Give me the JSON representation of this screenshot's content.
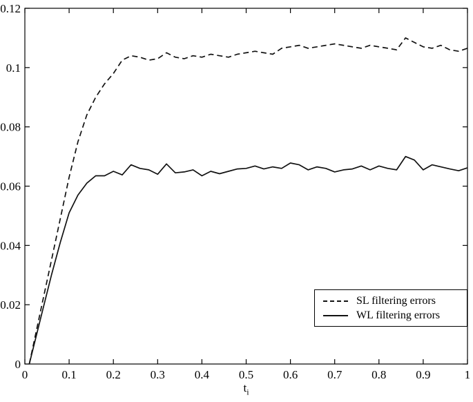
{
  "chart_data": {
    "type": "line",
    "title": "",
    "xlabel": "t_i",
    "xlabel_base": "t",
    "xlabel_sub": "i",
    "ylabel": "",
    "xlim": [
      0,
      1
    ],
    "ylim": [
      0,
      0.12
    ],
    "grid": false,
    "legend_position": "lower right",
    "xticks": [
      0,
      0.1,
      0.2,
      0.3,
      0.4,
      0.5,
      0.6,
      0.7,
      0.8,
      0.9,
      1
    ],
    "xtick_labels": [
      "0",
      "0.1",
      "0.2",
      "0.3",
      "0.4",
      "0.5",
      "0.6",
      "0.7",
      "0.8",
      "0.9",
      "1"
    ],
    "yticks": [
      0,
      0.02,
      0.04,
      0.06,
      0.08,
      0.1,
      0.12
    ],
    "ytick_labels": [
      "0",
      "0.02",
      "0.04",
      "0.06",
      "0.08",
      "0.1",
      "0.12"
    ],
    "x": [
      0.01,
      0.02,
      0.04,
      0.06,
      0.08,
      0.1,
      0.12,
      0.14,
      0.16,
      0.18,
      0.2,
      0.22,
      0.24,
      0.26,
      0.28,
      0.3,
      0.32,
      0.34,
      0.36,
      0.38,
      0.4,
      0.42,
      0.44,
      0.46,
      0.48,
      0.5,
      0.52,
      0.54,
      0.56,
      0.58,
      0.6,
      0.62,
      0.64,
      0.66,
      0.68,
      0.7,
      0.72,
      0.74,
      0.76,
      0.78,
      0.8,
      0.82,
      0.84,
      0.86,
      0.88,
      0.9,
      0.92,
      0.94,
      0.96,
      0.98,
      1.0
    ],
    "series": [
      {
        "name": "SL filtering errors",
        "style": "dashed",
        "values": [
          0,
          0.007,
          0.021,
          0.035,
          0.049,
          0.063,
          0.075,
          0.084,
          0.09,
          0.0945,
          0.098,
          0.1025,
          0.104,
          0.1035,
          0.1025,
          0.103,
          0.105,
          0.1035,
          0.103,
          0.104,
          0.1035,
          0.1045,
          0.104,
          0.1035,
          0.1045,
          0.105,
          0.1055,
          0.105,
          0.1045,
          0.1065,
          0.107,
          0.1075,
          0.1065,
          0.107,
          0.1075,
          0.108,
          0.1075,
          0.107,
          0.1065,
          0.1075,
          0.107,
          0.1065,
          0.106,
          0.11,
          0.1085,
          0.107,
          0.1065,
          0.1075,
          0.106,
          0.1055,
          0.1065
        ]
      },
      {
        "name": "WL filtering errors",
        "style": "solid",
        "values": [
          0,
          0.006,
          0.018,
          0.03,
          0.041,
          0.051,
          0.057,
          0.061,
          0.0635,
          0.0635,
          0.065,
          0.0638,
          0.0672,
          0.066,
          0.0655,
          0.064,
          0.0675,
          0.0645,
          0.0648,
          0.0655,
          0.0635,
          0.065,
          0.0642,
          0.065,
          0.0658,
          0.066,
          0.0668,
          0.0658,
          0.0665,
          0.066,
          0.0678,
          0.0672,
          0.0655,
          0.0665,
          0.066,
          0.0648,
          0.0655,
          0.0658,
          0.0668,
          0.0655,
          0.0668,
          0.066,
          0.0655,
          0.07,
          0.0688,
          0.0655,
          0.0672,
          0.0665,
          0.0658,
          0.0652,
          0.0662
        ]
      }
    ],
    "colors": {
      "line": "#111111",
      "axis": "#000000",
      "background": "#ffffff"
    }
  }
}
